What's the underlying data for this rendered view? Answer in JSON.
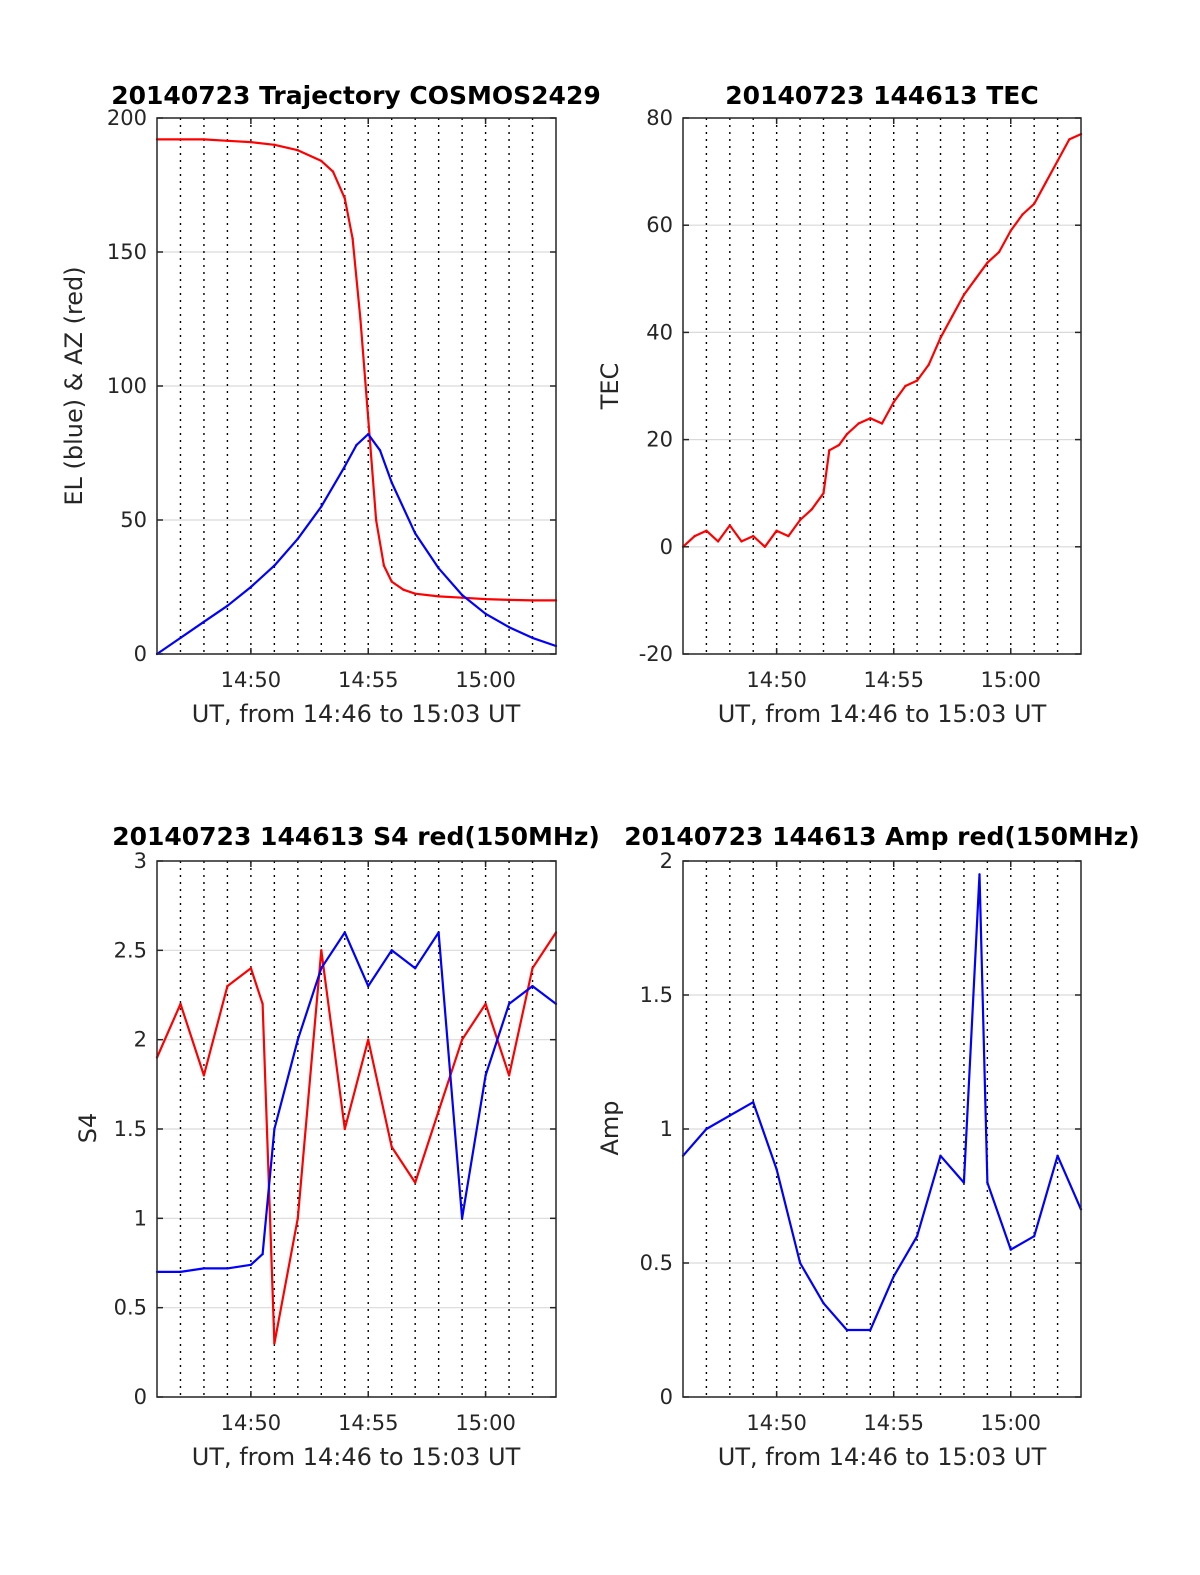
{
  "figure": {
    "colors": {
      "el_line": "#0000ff",
      "az_line": "#ff0000",
      "grid": "#d9d9d9",
      "axes": "#262626"
    }
  },
  "chart_data": [
    {
      "id": "trajectory",
      "type": "line",
      "title": "20140723 Trajectory COSMOS2429",
      "xlabel": "UT, from 14:46 to 15:03 UT",
      "ylabel": "EL (blue) & AZ (red)",
      "xlim": [
        "14:46",
        "15:03"
      ],
      "ylim": [
        0,
        200
      ],
      "xticks": [
        "14:50",
        "14:55",
        "15:00"
      ],
      "yticks": [
        0,
        50,
        100,
        150,
        200
      ],
      "grid": true,
      "series": [
        {
          "color": "#ff0000",
          "x": [
            "14:46",
            "14:47",
            "14:48",
            "14:49",
            "14:50",
            "14:51",
            "14:52",
            "14:53",
            "14:53:30",
            "14:54",
            "14:54:20",
            "14:54:40",
            "14:55",
            "14:55:20",
            "14:55:40",
            "14:56",
            "14:56:30",
            "14:57",
            "14:58",
            "14:59",
            "15:00",
            "15:01",
            "15:02",
            "15:03"
          ],
          "values": [
            192,
            192,
            192,
            191.5,
            191,
            190,
            188,
            184,
            180,
            170,
            155,
            125,
            88,
            50,
            33,
            27,
            24,
            22.5,
            21.5,
            21,
            20.5,
            20.2,
            20,
            20
          ]
        },
        {
          "color": "#0000ff",
          "x": [
            "14:46",
            "14:47",
            "14:48",
            "14:49",
            "14:50",
            "14:51",
            "14:52",
            "14:53",
            "14:54",
            "14:54:30",
            "14:55",
            "14:55:30",
            "14:56",
            "14:57",
            "14:58",
            "14:59",
            "15:00",
            "15:01",
            "15:02",
            "15:03"
          ],
          "values": [
            0,
            6,
            12,
            18,
            25,
            33,
            43,
            55,
            70,
            78,
            82,
            76,
            64,
            45,
            32,
            22,
            15,
            10,
            6,
            3
          ]
        }
      ]
    },
    {
      "id": "tec",
      "type": "line",
      "title": "20140723 144613 TEC",
      "xlabel": "UT, from 14:46 to 15:03 UT",
      "ylabel": "TEC",
      "xlim": [
        "14:46",
        "15:03"
      ],
      "ylim": [
        -20,
        80
      ],
      "xticks": [
        "14:50",
        "14:55",
        "15:00"
      ],
      "yticks": [
        -20,
        0,
        20,
        40,
        60,
        80
      ],
      "grid": true,
      "series": [
        {
          "color": "#ff0000",
          "x": [
            "14:46",
            "14:46:30",
            "14:47",
            "14:47:30",
            "14:48",
            "14:48:30",
            "14:49",
            "14:49:30",
            "14:50",
            "14:50:30",
            "14:51",
            "14:51:30",
            "14:52",
            "14:52:15",
            "14:52:40",
            "14:53",
            "14:53:30",
            "14:54",
            "14:54:30",
            "14:55",
            "14:55:30",
            "14:56",
            "14:56:30",
            "14:57",
            "14:57:30",
            "14:58",
            "14:58:30",
            "14:59",
            "14:59:30",
            "15:00",
            "15:00:30",
            "15:01",
            "15:01:30",
            "15:02",
            "15:02:30",
            "15:03"
          ],
          "values": [
            0,
            2,
            3,
            1,
            4,
            1,
            2,
            0,
            3,
            2,
            5,
            7,
            10,
            18,
            19,
            21,
            23,
            24,
            23,
            27,
            30,
            31,
            34,
            39,
            43,
            47,
            50,
            53,
            55,
            59,
            62,
            64,
            68,
            72,
            76,
            77
          ]
        }
      ]
    },
    {
      "id": "s4",
      "type": "line",
      "title": "20140723 144613 S4 red(150MHz)",
      "xlabel": "UT, from 14:46 to 15:03 UT",
      "ylabel": "S4",
      "xlim": [
        "14:46",
        "15:03"
      ],
      "ylim": [
        0,
        3
      ],
      "xticks": [
        "14:50",
        "14:55",
        "15:00"
      ],
      "yticks": [
        0,
        0.5,
        1,
        1.5,
        2,
        2.5,
        3
      ],
      "grid": true,
      "series": [
        {
          "color": "#ff0000",
          "x": [
            "14:46",
            "14:47",
            "14:48",
            "14:49",
            "14:50",
            "14:50:30",
            "14:51",
            "14:52",
            "14:53",
            "14:54",
            "14:55",
            "14:56",
            "14:57",
            "14:58",
            "14:59",
            "15:00",
            "15:01",
            "15:02",
            "15:03"
          ],
          "values": [
            1.9,
            2.2,
            1.8,
            2.3,
            2.4,
            2.2,
            0.3,
            1.0,
            2.5,
            1.5,
            2.0,
            1.4,
            1.2,
            1.6,
            2.0,
            2.2,
            1.8,
            2.4,
            2.6
          ]
        },
        {
          "color": "#0000ff",
          "x": [
            "14:46",
            "14:47",
            "14:48",
            "14:49",
            "14:50",
            "14:50:30",
            "14:51",
            "14:52",
            "14:53",
            "14:54",
            "14:55",
            "14:56",
            "14:57",
            "14:58",
            "14:59",
            "15:00",
            "15:01",
            "15:02",
            "15:03"
          ],
          "values": [
            0.7,
            0.7,
            0.72,
            0.72,
            0.74,
            0.8,
            1.5,
            2.0,
            2.4,
            2.6,
            2.3,
            2.5,
            2.4,
            2.6,
            1.0,
            1.8,
            2.2,
            2.3,
            2.2
          ]
        }
      ]
    },
    {
      "id": "amp",
      "type": "line",
      "title": "20140723 144613 Amp red(150MHz)",
      "xlabel": "UT, from 14:46 to 15:03 UT",
      "ylabel": "Amp",
      "xlim": [
        "14:46",
        "15:03"
      ],
      "ylim": [
        0,
        2
      ],
      "xticks": [
        "14:50",
        "14:55",
        "15:00"
      ],
      "yticks": [
        0,
        0.5,
        1,
        1.5,
        2
      ],
      "grid": true,
      "series": [
        {
          "color": "#0000ff",
          "x": [
            "14:46",
            "14:47",
            "14:48",
            "14:49",
            "14:50",
            "14:51",
            "14:52",
            "14:53",
            "14:54",
            "14:55",
            "14:56",
            "14:57",
            "14:58",
            "14:58:40",
            "14:59",
            "15:00",
            "15:01",
            "15:02",
            "15:03"
          ],
          "values": [
            0.9,
            1.0,
            1.05,
            1.1,
            0.85,
            0.5,
            0.35,
            0.25,
            0.25,
            0.45,
            0.6,
            0.9,
            0.8,
            1.95,
            0.8,
            0.55,
            0.6,
            0.9,
            0.7
          ]
        }
      ]
    }
  ]
}
